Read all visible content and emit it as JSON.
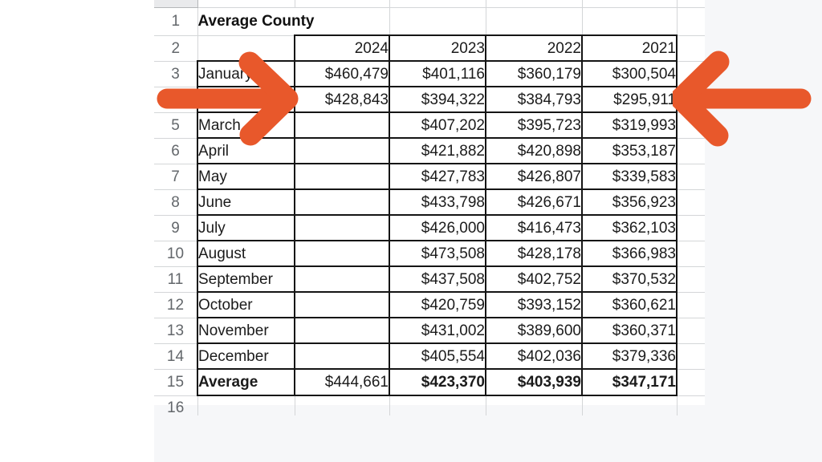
{
  "backdrop_color": "#F6F7F9",
  "annotations": {
    "arrow_color": "#E8582B",
    "left_arrow_direction": "right",
    "right_arrow_direction": "left"
  },
  "table": {
    "title": "Average County",
    "gutter": [
      "1",
      "2"
    ],
    "bottom_row_num": "16",
    "year_headers": [
      "2024",
      "2023",
      "2022",
      "2021"
    ],
    "rows": [
      {
        "num": "3",
        "label": "January",
        "values": [
          "$460,479",
          "$401,116",
          "$360,179",
          "$300,504"
        ]
      },
      {
        "num": "",
        "label": "",
        "values": [
          "$428,843",
          "$394,322",
          "$384,793",
          "$295,911"
        ]
      },
      {
        "num": "5",
        "label": "March",
        "values": [
          "",
          "$407,202",
          "$395,723",
          "$319,993"
        ]
      },
      {
        "num": "6",
        "label": "April",
        "values": [
          "",
          "$421,882",
          "$420,898",
          "$353,187"
        ]
      },
      {
        "num": "7",
        "label": "May",
        "values": [
          "",
          "$427,783",
          "$426,807",
          "$339,583"
        ]
      },
      {
        "num": "8",
        "label": "June",
        "values": [
          "",
          "$433,798",
          "$426,671",
          "$356,923"
        ]
      },
      {
        "num": "9",
        "label": "July",
        "values": [
          "",
          "$426,000",
          "$416,473",
          "$362,103"
        ]
      },
      {
        "num": "10",
        "label": "August",
        "values": [
          "",
          "$473,508",
          "$428,178",
          "$366,983"
        ]
      },
      {
        "num": "11",
        "label": "September",
        "values": [
          "",
          "$437,508",
          "$402,752",
          "$370,532"
        ]
      },
      {
        "num": "12",
        "label": "October",
        "values": [
          "",
          "$420,759",
          "$393,152",
          "$360,621"
        ]
      },
      {
        "num": "13",
        "label": "November",
        "values": [
          "",
          "$431,002",
          "$389,600",
          "$360,371"
        ]
      },
      {
        "num": "14",
        "label": "December",
        "values": [
          "",
          "$405,554",
          "$402,036",
          "$379,336"
        ]
      },
      {
        "num": "15",
        "label": "Average",
        "values": [
          "$444,661",
          "$423,370",
          "$403,939",
          "$347,171"
        ],
        "label_bold": true,
        "values_bold": [
          false,
          true,
          true,
          true
        ]
      }
    ]
  }
}
